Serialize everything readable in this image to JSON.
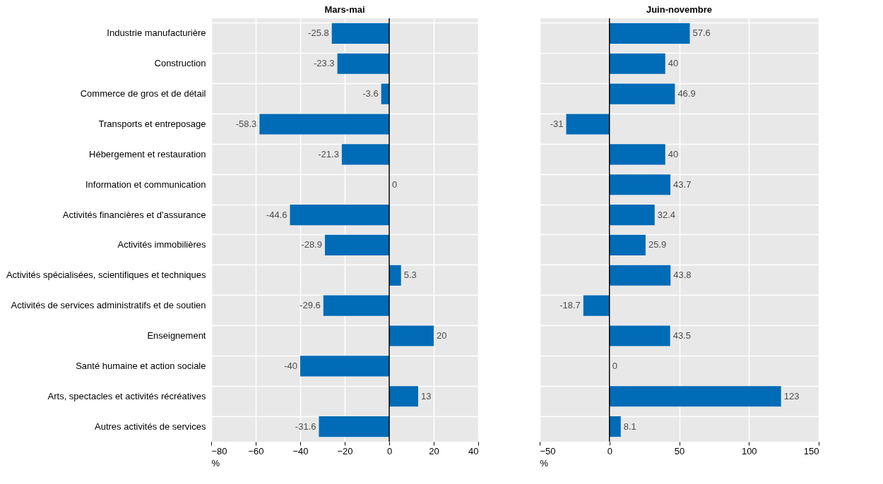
{
  "chart_data": [
    {
      "type": "bar",
      "orientation": "horizontal",
      "title": "Mars-mai",
      "xlabel": "%",
      "categories": [
        "Industrie manufacturière",
        "Construction",
        "Commerce de gros et de détail",
        "Transports et entreposage",
        "Hébergement et restauration",
        "Information et communication",
        "Activités financières et d'assurance",
        "Activités immobilières",
        "Activités spécialisées, scientifiques et techniques",
        "Activités de services administratifs et de soutien",
        "Enseignement",
        "Santé humaine et action sociale",
        "Arts, spectacles et activités récréatives",
        "Autres activités de services"
      ],
      "values": [
        -25.8,
        -23.3,
        -3.6,
        -58.3,
        -21.3,
        0,
        -44.6,
        -28.9,
        5.3,
        -29.6,
        20,
        -40,
        13,
        -31.6
      ],
      "color": "#006bb6",
      "xlim": [
        -80,
        40
      ],
      "xticks": [
        -80,
        -60,
        -40,
        -20,
        0,
        20,
        40
      ],
      "grid": true,
      "data_labels": true,
      "ref_lines": [
        {
          "axis": "x",
          "value": 0,
          "color": "#000000"
        }
      ]
    },
    {
      "type": "bar",
      "orientation": "horizontal",
      "title": "Juin-novembre",
      "xlabel": "%",
      "categories": [
        null,
        null,
        null,
        null,
        null,
        null,
        null,
        null,
        null,
        null,
        null,
        null,
        null,
        null
      ],
      "values": [
        57.6,
        40,
        46.9,
        -31,
        40,
        43.7,
        32.4,
        25.9,
        43.8,
        -18.7,
        43.5,
        0,
        123,
        8.1
      ],
      "color": "#006bb6",
      "xlim": [
        -50,
        150
      ],
      "xticks": [
        -50,
        0,
        50,
        100,
        150
      ],
      "grid": true,
      "data_labels": true,
      "tick_labels": "x",
      "ref_lines": [
        {
          "axis": "x",
          "value": 0,
          "color": "#000000"
        }
      ]
    }
  ]
}
